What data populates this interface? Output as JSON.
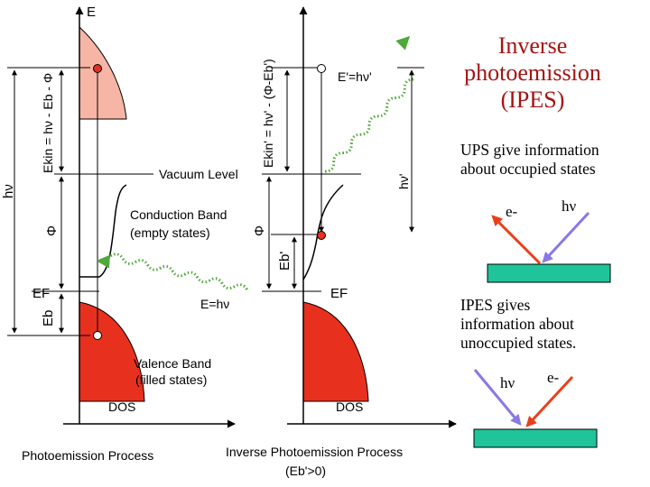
{
  "title": {
    "lines": [
      "Inverse",
      "photoemission",
      "(IPES)"
    ],
    "color": "#a51313"
  },
  "ups_text": {
    "lines": [
      "UPS give information",
      "about occupied states"
    ]
  },
  "ipes_text": {
    "lines": [
      "IPES gives",
      "information about",
      "unoccupied states."
    ]
  },
  "ups_sketch": {
    "electron": "e-",
    "photon": "hν"
  },
  "ipes_sketch": {
    "photon": "hν",
    "electron": "e-"
  },
  "pes": {
    "axis_e": "E",
    "vacuum_level": "Vacuum Level",
    "conduction_band": [
      "Conduction Band",
      "(empty states)"
    ],
    "valence_band": [
      "Valence Band",
      "(filled states)"
    ],
    "photon_label": "E=hν",
    "ef": "EF",
    "eb": "Eb",
    "phi": "Φ",
    "hv": "hν",
    "ekin": "Ekin = hν - Eb - Φ",
    "dos": "DOS",
    "caption": "Photoemission Process"
  },
  "ipes": {
    "photon_label": "E'=hν'",
    "ekin": "Ekin' = hν' - (Φ-Eb')",
    "hv": "hν'",
    "phi": "Φ",
    "eb": "Eb'",
    "ef": "EF",
    "dos": "DOS",
    "caption_line1": "Inverse Photoemission Process",
    "caption_line2": "(Eb'>0)"
  },
  "colors": {
    "filled": "#e8301e",
    "empty_fill": "#f7b5a5",
    "photon": "#4fa83a",
    "electron_arrow": "#e8401c",
    "photon_arrow": "#8a78e6",
    "sample": "#1fc49a",
    "title": "#a51313"
  },
  "icons": [
    "up-arrow-icon",
    "down-arrow-icon",
    "wavy-photon-icon",
    "electron-dot-icon",
    "hole-dot-icon"
  ]
}
